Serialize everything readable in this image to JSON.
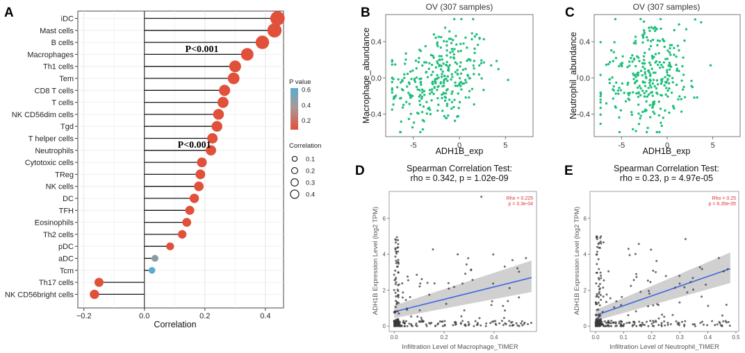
{
  "panels": {
    "A": "A",
    "B": "B",
    "C": "C",
    "D": "D",
    "E": "E"
  },
  "colors": {
    "high_p": "#5aaccf",
    "mid_p": "#8e9aa3",
    "low_p": "#e0503a",
    "scatter_green": "#1ebf7a",
    "reg_line": "#4169e1",
    "ci_band": "#c8c8c8",
    "dot_gray": "#3a3a3a"
  },
  "chart_data": [
    {
      "id": "A",
      "type": "scatter",
      "subtype": "lollipop",
      "title": "",
      "xlabel": "Correlation",
      "ylabel": "",
      "xlim": [
        -0.22,
        0.46
      ],
      "xticks": [
        -0.2,
        0.0,
        0.2,
        0.4
      ],
      "xtick_labels": [
        "−0.2",
        "0.0",
        "0.2",
        "0.4"
      ],
      "categories": [
        "iDC",
        "Mast cells",
        "B cells",
        "Macrophages",
        "Th1 cells",
        "Tem",
        "CD8 T cells",
        "T cells",
        "NK CD56dim cells",
        "Tgd",
        "T helper cells",
        "Neutrophils",
        "Cytotoxic cells",
        "TReg",
        "NK cells",
        "DC",
        "TFH",
        "Eosinophils",
        "Th2 cells",
        "pDC",
        "aDC",
        "Tcm",
        "Th17 cells",
        "NK CD56bright cells"
      ],
      "values": [
        0.44,
        0.43,
        0.39,
        0.34,
        0.3,
        0.295,
        0.265,
        0.26,
        0.245,
        0.24,
        0.225,
        0.22,
        0.19,
        0.185,
        0.18,
        0.165,
        0.15,
        0.14,
        0.125,
        0.085,
        0.035,
        0.025,
        -0.15,
        -0.165
      ],
      "p_values": [
        0.0,
        0.0,
        0.0,
        0.0,
        0.0,
        0.0,
        0.0,
        0.0,
        0.0,
        0.0,
        0.0,
        0.0,
        0.0,
        0.0,
        0.0,
        0.0,
        0.0,
        0.0,
        0.0,
        0.0,
        0.4,
        0.6,
        0.0,
        0.0
      ],
      "annotations": [
        {
          "text": "P<0.001",
          "row": 2.5,
          "x": 0.135
        },
        {
          "text": "P<0.001",
          "row": 10.5,
          "x": 0.11
        }
      ],
      "legend_color": {
        "title": "P value",
        "ticks": [
          "0.6",
          "0.4",
          "0.2"
        ],
        "tick_values": [
          0.6,
          0.4,
          0.2
        ]
      },
      "legend_size": {
        "title": "Correlation",
        "labels": [
          "0.1",
          "0.2",
          "0.3",
          "0.4"
        ],
        "values": [
          0.1,
          0.2,
          0.3,
          0.4
        ]
      }
    },
    {
      "id": "B",
      "type": "scatter",
      "title": "OV (307 samples)",
      "xlabel": "ADH1B_exp",
      "ylabel": "Macrophage_abundance",
      "xlim": [
        -8,
        8
      ],
      "ylim": [
        -0.65,
        0.7
      ],
      "xticks": [
        -5,
        0,
        5
      ],
      "xtick_labels": [
        "-5",
        "0",
        "5"
      ],
      "yticks": [
        0.4,
        0.0,
        -0.4
      ],
      "ytick_labels": [
        "0.4",
        "0.0",
        "-0.4"
      ],
      "caption": [
        "Spearman Correlation Test:",
        "rho = 0.342, p = 1.02e-09"
      ],
      "n_points": 307,
      "rho": 0.342
    },
    {
      "id": "C",
      "type": "scatter",
      "title": "OV (307 samples)",
      "xlabel": "ADH1B_exp",
      "ylabel": "Neutrophil_abundance",
      "xlim": [
        -8,
        8
      ],
      "ylim": [
        -0.65,
        0.7
      ],
      "xticks": [
        -5,
        0,
        5
      ],
      "xtick_labels": [
        "-5",
        "0",
        "5"
      ],
      "yticks": [
        0.4,
        0.0,
        -0.4
      ],
      "ytick_labels": [
        "0.4",
        "0.0",
        "-0.4"
      ],
      "caption": [
        "Spearman Correlation Test:",
        "rho = 0.23, p = 4.97e-05"
      ],
      "n_points": 307,
      "rho": 0.23
    },
    {
      "id": "D",
      "type": "scatter",
      "title": "",
      "xlabel": "Infiltration Level of Macrophage_TIMER",
      "ylabel": "ADH1B Expression Level (log2 TPM)",
      "xlim": [
        -0.02,
        0.57
      ],
      "ylim": [
        -0.3,
        7.5
      ],
      "xticks": [
        0.0,
        0.2,
        0.4
      ],
      "xtick_labels": [
        "0.0",
        "0.2",
        "0.4"
      ],
      "yticks": [
        0,
        2,
        4,
        6
      ],
      "ytick_labels": [
        "0",
        "2",
        "4",
        "6"
      ],
      "stats": [
        "Rho = 0.225",
        "p = 3.3e-04"
      ],
      "regression": {
        "x": [
          0.0,
          0.55
        ],
        "y": [
          0.8,
          2.7
        ],
        "ci_low": [
          0.45,
          1.9
        ],
        "ci_high": [
          1.15,
          3.65
        ]
      }
    },
    {
      "id": "E",
      "type": "scatter",
      "title": "",
      "xlabel": "Infiltration Level of Neutrophil_TIMER",
      "ylabel": "ADH1B Expression Level (log2 TPM)",
      "xlim": [
        -0.02,
        0.51
      ],
      "ylim": [
        -0.3,
        7.5
      ],
      "xticks": [
        0.0,
        0.1,
        0.2,
        0.3,
        0.4,
        0.5
      ],
      "xtick_labels": [
        "0.0",
        "0.1",
        "0.2",
        "0.3",
        "0.4",
        "0.5"
      ],
      "yticks": [
        0,
        2,
        4,
        6
      ],
      "ytick_labels": [
        "0",
        "2",
        "4",
        "6"
      ],
      "stats": [
        "Rho = 0.25",
        "p = 6.35e-05"
      ],
      "regression": {
        "x": [
          0.0,
          0.48
        ],
        "y": [
          0.6,
          3.2
        ],
        "ci_low": [
          0.3,
          2.4
        ],
        "ci_high": [
          0.9,
          4.1
        ]
      }
    }
  ]
}
